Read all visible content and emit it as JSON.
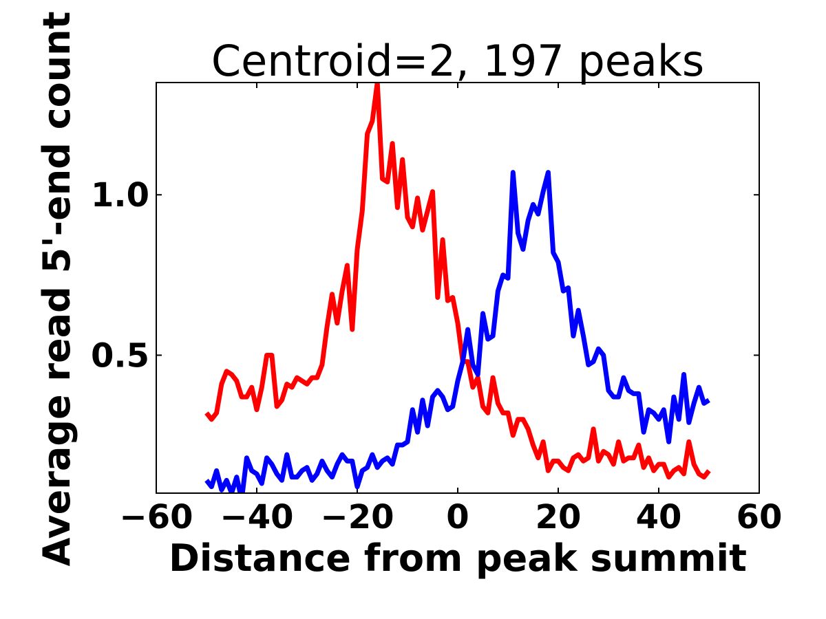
{
  "chart_data": {
    "type": "line",
    "title": "Centroid=2, 197 peaks",
    "xlabel": "Distance from peak summit",
    "ylabel": "Average read 5'-end count",
    "xlim": [
      -60,
      60
    ],
    "ylim": [
      0.07,
      1.35
    ],
    "x_ticks": [
      -60,
      -40,
      -20,
      0,
      20,
      40,
      60
    ],
    "x_tick_labels": [
      "−60",
      "−40",
      "−20",
      "0",
      "20",
      "40",
      "60"
    ],
    "y_ticks": [
      0.5,
      1.0
    ],
    "y_tick_labels": [
      "0.5",
      "1.0"
    ],
    "grid": false,
    "x": [
      -50,
      -49,
      -48,
      -47,
      -46,
      -45,
      -44,
      -43,
      -42,
      -41,
      -40,
      -39,
      -38,
      -37,
      -36,
      -35,
      -34,
      -33,
      -32,
      -31,
      -30,
      -29,
      -28,
      -27,
      -26,
      -25,
      -24,
      -23,
      -22,
      -21,
      -20,
      -19,
      -18,
      -17,
      -16,
      -15,
      -14,
      -13,
      -12,
      -11,
      -10,
      -9,
      -8,
      -7,
      -6,
      -5,
      -4,
      -3,
      -2,
      -1,
      0,
      1,
      2,
      3,
      4,
      5,
      6,
      7,
      8,
      9,
      10,
      11,
      12,
      13,
      14,
      15,
      16,
      17,
      18,
      19,
      20,
      21,
      22,
      23,
      24,
      25,
      26,
      27,
      28,
      29,
      30,
      31,
      32,
      33,
      34,
      35,
      36,
      37,
      38,
      39,
      40,
      41,
      42,
      43,
      44,
      45,
      46,
      47,
      48,
      49,
      50
    ],
    "series": [
      {
        "color": "#ff0000",
        "values": [
          0.32,
          0.3,
          0.32,
          0.41,
          0.45,
          0.44,
          0.42,
          0.37,
          0.37,
          0.4,
          0.33,
          0.4,
          0.5,
          0.5,
          0.34,
          0.36,
          0.41,
          0.4,
          0.43,
          0.42,
          0.41,
          0.43,
          0.43,
          0.47,
          0.59,
          0.69,
          0.6,
          0.7,
          0.78,
          0.58,
          0.83,
          0.95,
          1.19,
          1.23,
          1.35,
          1.05,
          1.04,
          1.16,
          0.96,
          1.11,
          0.93,
          0.9,
          0.99,
          0.89,
          0.95,
          1.01,
          0.68,
          0.86,
          0.67,
          0.68,
          0.6,
          0.48,
          0.48,
          0.4,
          0.43,
          0.34,
          0.32,
          0.43,
          0.35,
          0.32,
          0.32,
          0.25,
          0.3,
          0.3,
          0.27,
          0.22,
          0.18,
          0.23,
          0.14,
          0.17,
          0.17,
          0.15,
          0.14,
          0.18,
          0.19,
          0.17,
          0.18,
          0.27,
          0.17,
          0.2,
          0.19,
          0.16,
          0.23,
          0.17,
          0.18,
          0.18,
          0.22,
          0.15,
          0.18,
          0.14,
          0.16,
          0.16,
          0.12,
          0.14,
          0.15,
          0.13,
          0.23,
          0.16,
          0.13,
          0.12,
          0.14
        ]
      },
      {
        "color": "#0000ff",
        "values": [
          0.11,
          0.09,
          0.14,
          0.08,
          0.11,
          0.07,
          0.12,
          0.05,
          0.18,
          0.14,
          0.13,
          0.1,
          0.18,
          0.16,
          0.13,
          0.11,
          0.19,
          0.12,
          0.12,
          0.14,
          0.15,
          0.11,
          0.13,
          0.17,
          0.14,
          0.12,
          0.16,
          0.19,
          0.17,
          0.17,
          0.09,
          0.14,
          0.15,
          0.19,
          0.15,
          0.17,
          0.18,
          0.16,
          0.22,
          0.22,
          0.23,
          0.33,
          0.26,
          0.36,
          0.28,
          0.37,
          0.39,
          0.37,
          0.33,
          0.34,
          0.42,
          0.48,
          0.58,
          0.47,
          0.44,
          0.63,
          0.55,
          0.56,
          0.7,
          0.75,
          0.74,
          1.07,
          0.88,
          0.83,
          0.92,
          0.97,
          0.94,
          1.01,
          1.07,
          0.82,
          0.79,
          0.7,
          0.71,
          0.56,
          0.64,
          0.56,
          0.47,
          0.48,
          0.52,
          0.5,
          0.39,
          0.37,
          0.37,
          0.43,
          0.39,
          0.38,
          0.38,
          0.26,
          0.33,
          0.32,
          0.3,
          0.33,
          0.23,
          0.37,
          0.3,
          0.44,
          0.29,
          0.35,
          0.4,
          0.35,
          0.36
        ]
      }
    ]
  }
}
